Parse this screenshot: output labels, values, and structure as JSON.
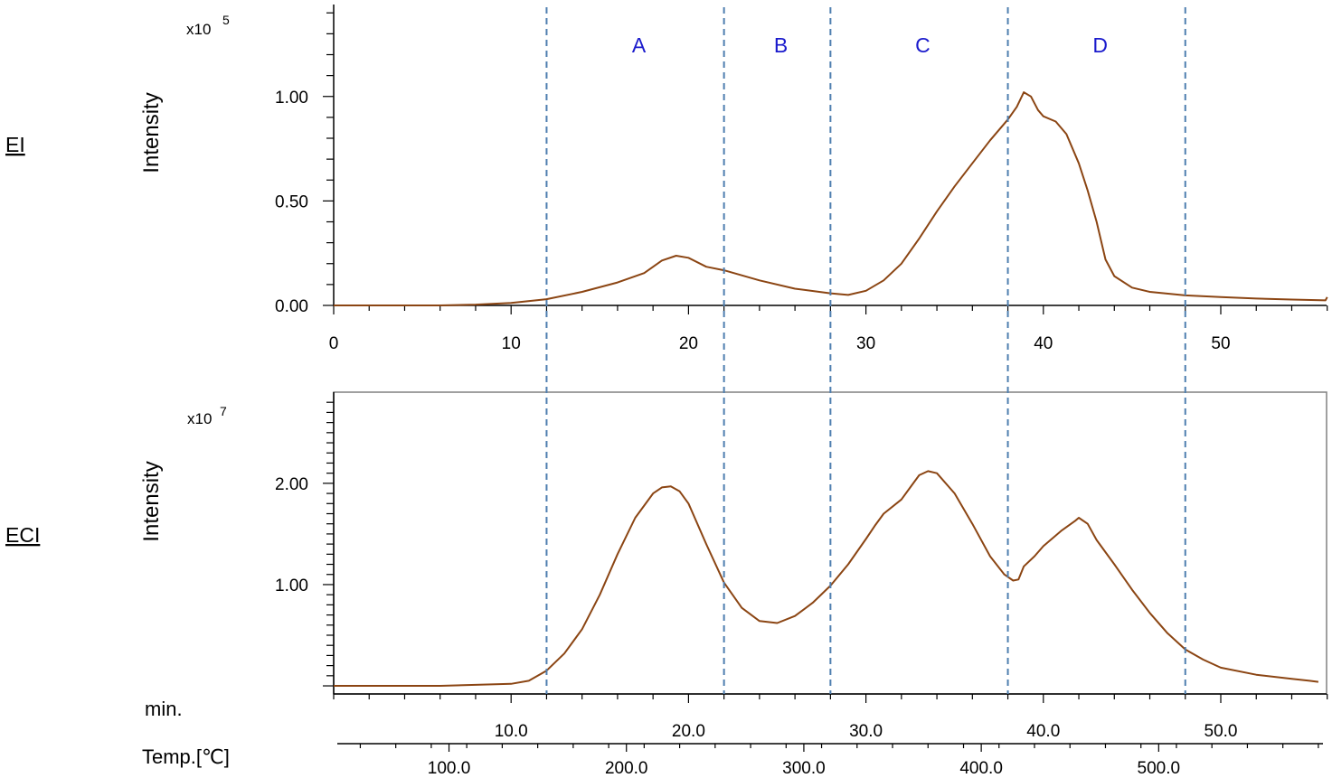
{
  "colors": {
    "trace": "#8B4513",
    "divider": "#4f7fb0",
    "region_label": "#1a1acc",
    "frame": "#808080"
  },
  "chart_data": [
    {
      "type": "line",
      "side_label": "EI",
      "ylabel": "Intensity",
      "scale_label": "x10",
      "scale_exp": "5",
      "xlim": [
        0,
        56
      ],
      "ylim": [
        0,
        1.44
      ],
      "x_ticks": [
        "0",
        "10",
        "20",
        "30",
        "40",
        "50"
      ],
      "y_ticks": [
        "0.00",
        "0.50",
        "1.00"
      ],
      "regions": [
        "A",
        "B",
        "C",
        "D"
      ],
      "dividers_min": [
        12,
        22,
        28,
        38,
        48
      ],
      "series": [
        {
          "x": [
            0,
            6,
            8,
            10,
            12,
            14,
            16,
            17.5,
            18.5,
            19.3,
            20,
            21,
            22,
            24,
            26,
            28,
            29,
            30,
            31,
            32,
            33,
            34,
            35,
            36,
            37,
            38,
            38.5,
            38.9,
            39.3,
            39.7,
            40,
            40.7,
            41.3,
            42,
            42.5,
            43,
            43.5,
            44,
            45,
            46,
            48,
            50,
            52,
            54,
            55.9,
            56
          ],
          "y": [
            0,
            0,
            0.004,
            0.012,
            0.03,
            0.065,
            0.11,
            0.155,
            0.215,
            0.238,
            0.228,
            0.185,
            0.168,
            0.12,
            0.08,
            0.058,
            0.05,
            0.07,
            0.12,
            0.2,
            0.32,
            0.45,
            0.57,
            0.68,
            0.79,
            0.89,
            0.95,
            1.02,
            1.0,
            0.935,
            0.905,
            0.88,
            0.82,
            0.68,
            0.55,
            0.4,
            0.22,
            0.14,
            0.085,
            0.065,
            0.048,
            0.04,
            0.033,
            0.028,
            0.024,
            0.04
          ]
        }
      ]
    },
    {
      "type": "line",
      "side_label": "ECI",
      "ylabel": "Intensity",
      "scale_label": "x10",
      "scale_exp": "7",
      "xlim": [
        0,
        56
      ],
      "ylim": [
        -0.08,
        2.9
      ],
      "x_ticks": [
        "10.0",
        "20.0",
        "30.0",
        "40.0",
        "50.0"
      ],
      "y_ticks": [
        "1.00",
        "2.00"
      ],
      "x_axis_unit": "min.",
      "temp_label": "Temp.[℃]",
      "temp_ticks": [
        "100.0",
        "200.0",
        "300.0",
        "400.0",
        "500.0"
      ],
      "temp_tick_min": [
        6.5,
        16.5,
        26.5,
        36.5,
        46.5
      ],
      "dividers_min": [
        12,
        22,
        28,
        38,
        48
      ],
      "series": [
        {
          "x": [
            0,
            6,
            8,
            10,
            11,
            12,
            13,
            14,
            15,
            16,
            17,
            18,
            18.5,
            19,
            19.5,
            20,
            21,
            22,
            23,
            24,
            25,
            26,
            27,
            28,
            29,
            30,
            30.5,
            31,
            32,
            32.5,
            33,
            33.5,
            34,
            35,
            36,
            37,
            37.8,
            38.3,
            38.6,
            38.9,
            39.5,
            40,
            41,
            41.8,
            42,
            42.5,
            43,
            44,
            45,
            46,
            47,
            48,
            49,
            50,
            52,
            54,
            55,
            55.5
          ],
          "y": [
            0,
            0,
            0.01,
            0.02,
            0.05,
            0.15,
            0.32,
            0.56,
            0.9,
            1.3,
            1.66,
            1.9,
            1.96,
            1.97,
            1.92,
            1.8,
            1.4,
            1.02,
            0.77,
            0.64,
            0.62,
            0.69,
            0.82,
            0.99,
            1.2,
            1.45,
            1.58,
            1.7,
            1.84,
            1.96,
            2.08,
            2.12,
            2.1,
            1.9,
            1.6,
            1.28,
            1.1,
            1.04,
            1.05,
            1.18,
            1.28,
            1.38,
            1.53,
            1.63,
            1.66,
            1.6,
            1.44,
            1.2,
            0.95,
            0.72,
            0.52,
            0.36,
            0.26,
            0.18,
            0.11,
            0.07,
            0.05,
            0.04
          ]
        }
      ]
    }
  ]
}
